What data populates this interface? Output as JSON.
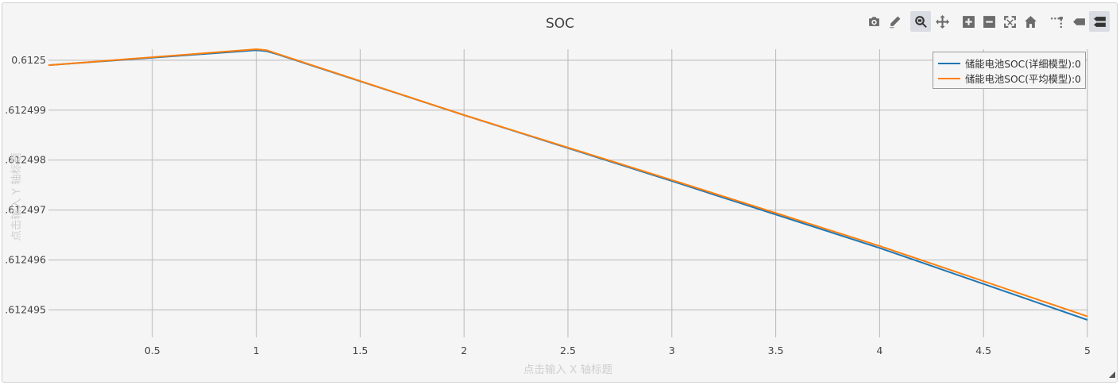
{
  "chart_data": {
    "type": "line",
    "title": "SOC",
    "xlabel": "点击输入 X 轴标题",
    "ylabel": "点击输入 Y 轴标题",
    "xlim": [
      0,
      5
    ],
    "ylim": [
      0.61249445,
      0.61250022
    ],
    "x_ticks": [
      0.5,
      1,
      1.5,
      2,
      2.5,
      3,
      3.5,
      4,
      4.5,
      5
    ],
    "x_tick_labels": [
      "0.5",
      "1",
      "1.5",
      "2",
      "2.5",
      "3",
      "3.5",
      "4",
      "4.5",
      "5"
    ],
    "y_ticks": [
      0.6125,
      0.612499,
      0.612498,
      0.612497,
      0.612496,
      0.612495
    ],
    "y_tick_labels": [
      "0.6125",
      ".612499",
      ".612498",
      ".612497",
      ".612496",
      ".612495"
    ],
    "grid": true,
    "legend_position": "top-right",
    "series": [
      {
        "name": "储能电池SOC(详细模型):0",
        "color": "#1f77b4",
        "x": [
          0,
          1,
          1.05,
          1.1,
          2,
          3,
          4,
          5
        ],
        "y": [
          0.6124999,
          0.6125002,
          0.61250018,
          0.61250012,
          0.6124989,
          0.61249758,
          0.61249624,
          0.6124948
        ]
      },
      {
        "name": "储能电池SOC(平均模型):0",
        "color": "#ff7f0e",
        "x": [
          0,
          1,
          1.05,
          1.1,
          2,
          3,
          4,
          5
        ],
        "y": [
          0.6124999,
          0.61250022,
          0.6125002,
          0.61250013,
          0.6124989,
          0.6124976,
          0.61249628,
          0.61249487
        ]
      }
    ]
  },
  "modebar": {
    "buttons": [
      {
        "icon": "camera-icon",
        "label": "Download plot as a png"
      },
      {
        "icon": "pencil-icon",
        "label": "Edit in Chart Studio"
      },
      {
        "icon": "zoom-icon",
        "label": "Zoom",
        "active": true
      },
      {
        "icon": "pan-icon",
        "label": "Pan"
      },
      {
        "icon": "zoom-in-icon",
        "label": "Zoom in"
      },
      {
        "icon": "zoom-out-icon",
        "label": "Zoom out"
      },
      {
        "icon": "autoscale-icon",
        "label": "Autoscale"
      },
      {
        "icon": "home-icon",
        "label": "Reset axes"
      },
      {
        "icon": "spikelines-icon",
        "label": "Toggle Spike Lines"
      },
      {
        "icon": "hover-closest-icon",
        "label": "Show closest data on hover"
      },
      {
        "icon": "hover-compare-icon",
        "label": "Compare data on hover",
        "active": true
      }
    ]
  }
}
